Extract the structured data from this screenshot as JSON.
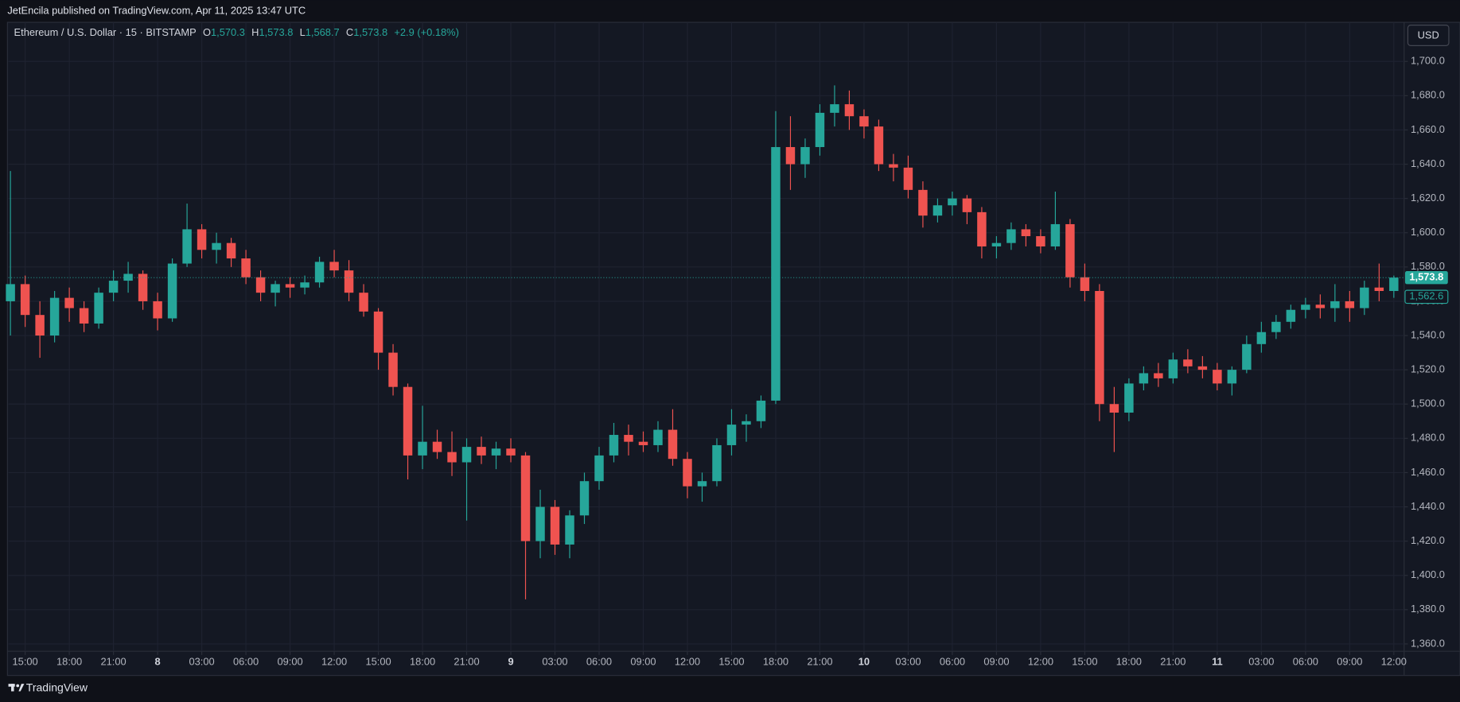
{
  "header": {
    "publisher": "JetEncila published on TradingView.com, Apr 11, 2025 13:47 UTC"
  },
  "footer": {
    "brand": "TradingView"
  },
  "chart_data": {
    "type": "candlestick",
    "title": "Ethereum / U.S. Dollar · 15 · BITSTAMP",
    "ohlc_legend": [
      {
        "key": "O",
        "value": "1,570.3"
      },
      {
        "key": "H",
        "value": "1,573.8"
      },
      {
        "key": "L",
        "value": "1,568.7"
      },
      {
        "key": "C",
        "value": "1,573.8"
      }
    ],
    "change": "+2.9 (+0.18%)",
    "currency": "USD",
    "up_color": "#26a69a",
    "down_color": "#ef5350",
    "grid": true,
    "xlim": [
      13.86,
      108.7
    ],
    "ylim": [
      1355.7,
      1722.8
    ],
    "xticks": [
      {
        "value": 15,
        "label": "15:00"
      },
      {
        "value": 18,
        "label": "18:00"
      },
      {
        "value": 21,
        "label": "21:00"
      },
      {
        "value": 24,
        "label": "8"
      },
      {
        "value": 27,
        "label": "03:00"
      },
      {
        "value": 30,
        "label": "06:00"
      },
      {
        "value": 33,
        "label": "09:00"
      },
      {
        "value": 36,
        "label": "12:00"
      },
      {
        "value": 39,
        "label": "15:00"
      },
      {
        "value": 42,
        "label": "18:00"
      },
      {
        "value": 45,
        "label": "21:00"
      },
      {
        "value": 48,
        "label": "9"
      },
      {
        "value": 51,
        "label": "03:00"
      },
      {
        "value": 54,
        "label": "06:00"
      },
      {
        "value": 57,
        "label": "09:00"
      },
      {
        "value": 60,
        "label": "12:00"
      },
      {
        "value": 63,
        "label": "15:00"
      },
      {
        "value": 66,
        "label": "18:00"
      },
      {
        "value": 69,
        "label": "21:00"
      },
      {
        "value": 72,
        "label": "10"
      },
      {
        "value": 75,
        "label": "03:00"
      },
      {
        "value": 78,
        "label": "06:00"
      },
      {
        "value": 81,
        "label": "09:00"
      },
      {
        "value": 84,
        "label": "12:00"
      },
      {
        "value": 87,
        "label": "15:00"
      },
      {
        "value": 90,
        "label": "18:00"
      },
      {
        "value": 93,
        "label": "21:00"
      },
      {
        "value": 96,
        "label": "11"
      },
      {
        "value": 99,
        "label": "03:00"
      },
      {
        "value": 102,
        "label": "06:00"
      },
      {
        "value": 105,
        "label": "09:00"
      },
      {
        "value": 108,
        "label": "12:00"
      }
    ],
    "yticks": [
      {
        "value": 1360,
        "label": "1,360.0"
      },
      {
        "value": 1380,
        "label": "1,380.0"
      },
      {
        "value": 1400,
        "label": "1,400.0"
      },
      {
        "value": 1420,
        "label": "1,420.0"
      },
      {
        "value": 1440,
        "label": "1,440.0"
      },
      {
        "value": 1460,
        "label": "1,460.0"
      },
      {
        "value": 1480,
        "label": "1,480.0"
      },
      {
        "value": 1500,
        "label": "1,500.0"
      },
      {
        "value": 1520,
        "label": "1,520.0"
      },
      {
        "value": 1540,
        "label": "1,540.0"
      },
      {
        "value": 1560,
        "label": "1,560.0"
      },
      {
        "value": 1580,
        "label": "1,580.0"
      },
      {
        "value": 1600,
        "label": "1,600.0"
      },
      {
        "value": 1620,
        "label": "1,620.0"
      },
      {
        "value": 1640,
        "label": "1,640.0"
      },
      {
        "value": 1660,
        "label": "1,660.0"
      },
      {
        "value": 1680,
        "label": "1,680.0"
      },
      {
        "value": 1700,
        "label": "1,700.0"
      }
    ],
    "price_markers": [
      {
        "value": 1573.8,
        "label": "1,573.8"
      },
      {
        "value": 1562.6,
        "label": "1,562.6"
      }
    ],
    "x": [
      14,
      15,
      16,
      17,
      18,
      19,
      20,
      21,
      22,
      23,
      24,
      25,
      26,
      27,
      28,
      29,
      30,
      31,
      32,
      33,
      34,
      35,
      36,
      37,
      38,
      39,
      40,
      41,
      42,
      43,
      44,
      45,
      46,
      47,
      48,
      49,
      50,
      51,
      52,
      53,
      54,
      55,
      56,
      57,
      58,
      59,
      60,
      61,
      62,
      63,
      64,
      65,
      66,
      67,
      68,
      69,
      70,
      71,
      72,
      73,
      74,
      75,
      76,
      77,
      78,
      79,
      80,
      81,
      82,
      83,
      84,
      85,
      86,
      87,
      88,
      89,
      90,
      91,
      92,
      93,
      94,
      95,
      96,
      97,
      98,
      99,
      100,
      101,
      102,
      103,
      104,
      105,
      106,
      107,
      108
    ],
    "open": [
      1560,
      1570,
      1552,
      1540,
      1562,
      1556,
      1547,
      1565,
      1572,
      1576,
      1560,
      1550,
      1582,
      1602,
      1590,
      1594,
      1585,
      1574,
      1565,
      1570,
      1568,
      1571,
      1583,
      1578,
      1565,
      1554,
      1530,
      1510,
      1470,
      1478,
      1472,
      1466,
      1475,
      1470,
      1474,
      1470,
      1420,
      1440,
      1418,
      1435,
      1455,
      1470,
      1482,
      1478,
      1476,
      1485,
      1468,
      1452,
      1455,
      1476,
      1488,
      1490,
      1502,
      1650,
      1640,
      1650,
      1670,
      1675,
      1668,
      1662,
      1640,
      1638,
      1625,
      1610,
      1616,
      1620,
      1612,
      1592,
      1594,
      1602,
      1598,
      1592,
      1605,
      1574,
      1566,
      1500,
      1495,
      1512,
      1518,
      1515,
      1526,
      1522,
      1520,
      1512,
      1520,
      1535,
      1542,
      1548,
      1555,
      1558,
      1556,
      1560,
      1556,
      1568,
      1566
    ],
    "high": [
      1636,
      1575,
      1560,
      1566,
      1568,
      1560,
      1568,
      1578,
      1583,
      1578,
      1565,
      1585,
      1617,
      1605,
      1600,
      1597,
      1590,
      1578,
      1572,
      1574,
      1575,
      1586,
      1590,
      1584,
      1570,
      1556,
      1535,
      1512,
      1499,
      1485,
      1484,
      1480,
      1481,
      1478,
      1480,
      1472,
      1450,
      1444,
      1438,
      1460,
      1475,
      1489,
      1488,
      1484,
      1490,
      1497,
      1472,
      1460,
      1480,
      1497,
      1494,
      1505,
      1671,
      1668,
      1655,
      1675,
      1686,
      1683,
      1672,
      1666,
      1646,
      1645,
      1630,
      1620,
      1624,
      1622,
      1615,
      1598,
      1606,
      1605,
      1602,
      1624,
      1608,
      1582,
      1570,
      1510,
      1515,
      1522,
      1524,
      1530,
      1532,
      1528,
      1524,
      1522,
      1540,
      1548,
      1552,
      1558,
      1562,
      1564,
      1570,
      1566,
      1572,
      1582,
      1575
    ],
    "low": [
      1540,
      1545,
      1527,
      1536,
      1548,
      1542,
      1544,
      1560,
      1565,
      1555,
      1543,
      1548,
      1580,
      1585,
      1582,
      1580,
      1570,
      1560,
      1557,
      1562,
      1564,
      1568,
      1574,
      1560,
      1551,
      1520,
      1505,
      1456,
      1462,
      1468,
      1458,
      1432,
      1465,
      1462,
      1466,
      1386,
      1410,
      1412,
      1410,
      1430,
      1450,
      1466,
      1470,
      1472,
      1472,
      1464,
      1445,
      1443,
      1452,
      1470,
      1478,
      1486,
      1500,
      1625,
      1632,
      1645,
      1662,
      1660,
      1655,
      1636,
      1630,
      1620,
      1603,
      1606,
      1610,
      1605,
      1585,
      1585,
      1590,
      1592,
      1588,
      1590,
      1568,
      1560,
      1490,
      1472,
      1490,
      1508,
      1510,
      1512,
      1518,
      1515,
      1508,
      1505,
      1518,
      1530,
      1538,
      1544,
      1550,
      1550,
      1548,
      1548,
      1552,
      1560,
      1562
    ],
    "close": [
      1570,
      1552,
      1540,
      1562,
      1556,
      1547,
      1565,
      1572,
      1576,
      1560,
      1550,
      1582,
      1602,
      1590,
      1594,
      1585,
      1574,
      1565,
      1570,
      1568,
      1571,
      1583,
      1578,
      1565,
      1554,
      1530,
      1510,
      1470,
      1478,
      1472,
      1466,
      1475,
      1470,
      1474,
      1470,
      1420,
      1440,
      1418,
      1435,
      1455,
      1470,
      1482,
      1478,
      1476,
      1485,
      1468,
      1452,
      1455,
      1476,
      1488,
      1490,
      1502,
      1650,
      1640,
      1650,
      1670,
      1675,
      1668,
      1662,
      1640,
      1638,
      1625,
      1610,
      1616,
      1620,
      1612,
      1592,
      1594,
      1602,
      1598,
      1592,
      1605,
      1574,
      1566,
      1500,
      1495,
      1512,
      1518,
      1515,
      1526,
      1522,
      1520,
      1512,
      1520,
      1535,
      1542,
      1548,
      1555,
      1558,
      1556,
      1560,
      1556,
      1568,
      1566,
      1573.8
    ]
  }
}
